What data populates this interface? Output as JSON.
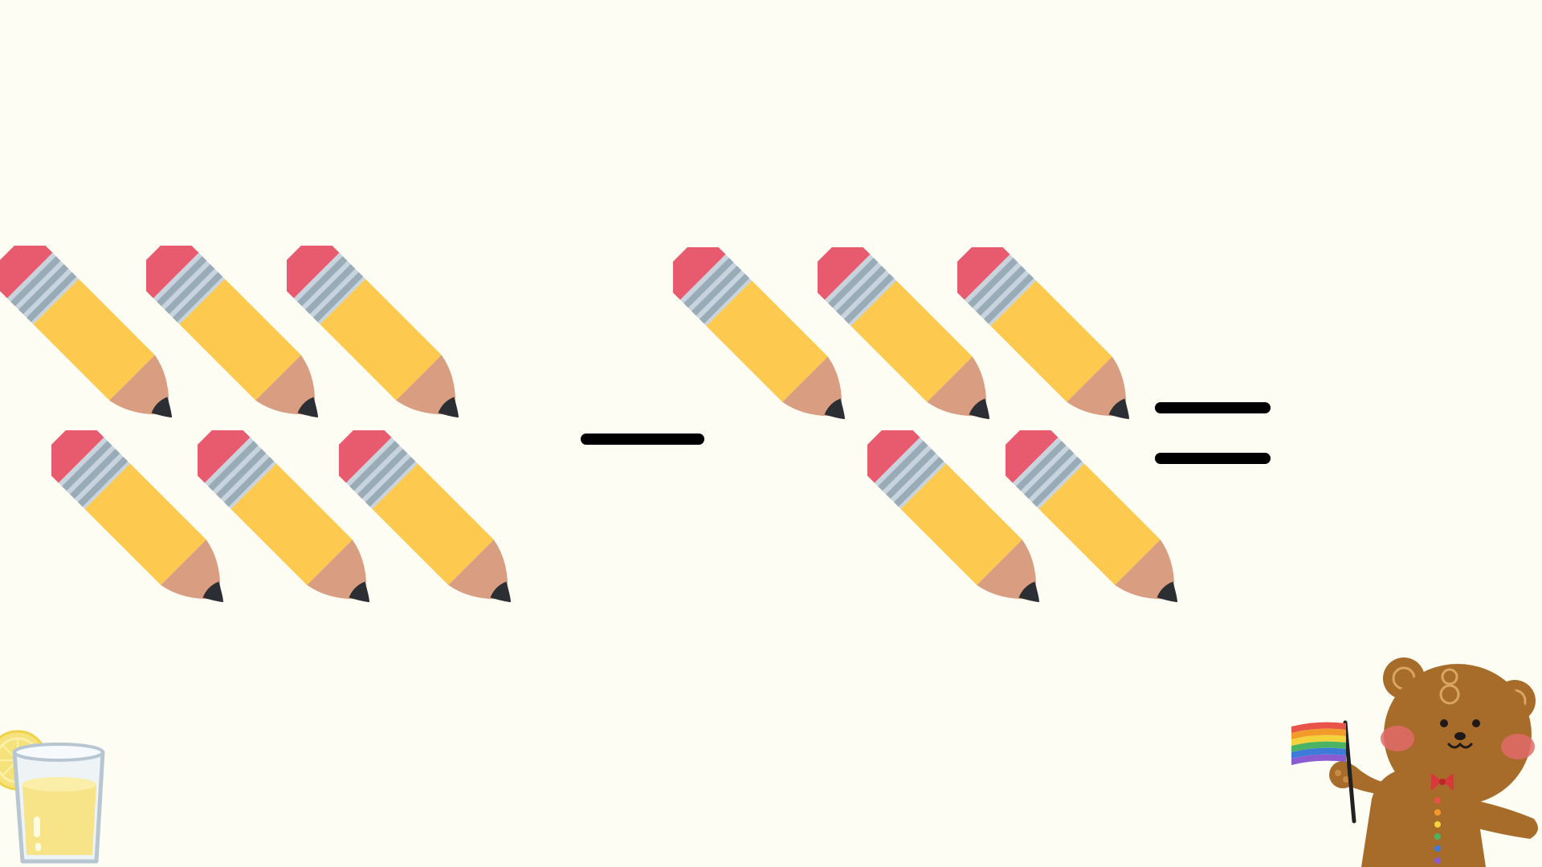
{
  "slide": {
    "background_color": "#fefdf4",
    "equation": {
      "minuend": {
        "item_icon": "pencil-icon",
        "count": 6
      },
      "operator": "minus",
      "subtrahend": {
        "item_icon": "pencil-icon",
        "count": 5
      },
      "relation": "equals",
      "answer_shown": false
    },
    "colors": {
      "pencil_body": "#fdc94e",
      "pencil_eraser": "#e85a6e",
      "pencil_ferrule": "#c7d4de",
      "pencil_ferrule_stripe": "#9aabb8",
      "pencil_wood": "#d99e82",
      "pencil_lead": "#2b2f33",
      "symbol_color": "#000000"
    },
    "decorations": [
      {
        "icon": "lemonade-glass-icon"
      },
      {
        "icon": "teddy-bear-icon",
        "holding": "rainbow-flag-icon"
      }
    ]
  }
}
